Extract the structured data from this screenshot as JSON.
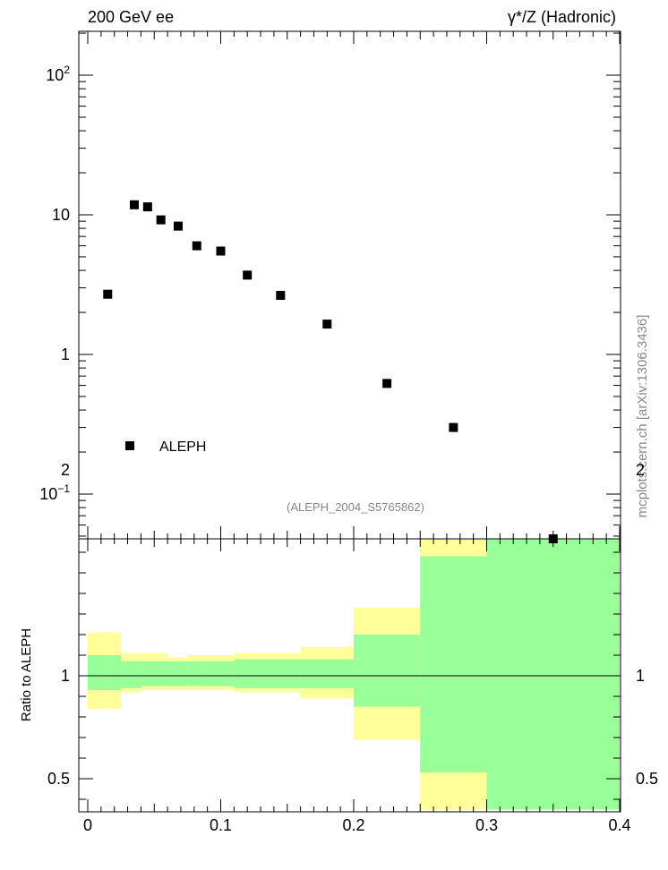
{
  "header": {
    "left": "200 GeV ee",
    "right": "γ*/Z (Hadronic)"
  },
  "side_label": "mcplots.cern.ch [arXiv:1306.3436]",
  "analysis_tag": "(ALEPH_2004_S5765862)",
  "legend": {
    "label": "ALEPH"
  },
  "colors": {
    "data": "#000000",
    "band_inner": "#99ff99",
    "band_outer": "#ffff99",
    "line": "#000000"
  },
  "chart_data": [
    {
      "type": "scatter",
      "name": "main",
      "log_y": true,
      "xlim": [
        0,
        0.4
      ],
      "ylim": [
        0.05,
        200
      ],
      "y_ticks": [
        {
          "v": 0.1,
          "base": "10",
          "exp": "−1"
        },
        {
          "v": 1,
          "base": "1",
          "exp": ""
        },
        {
          "v": 10,
          "base": "10",
          "exp": ""
        },
        {
          "v": 100,
          "base": "10",
          "exp": "2"
        }
      ],
      "series": [
        {
          "name": "ALEPH",
          "x": [
            0.015,
            0.035,
            0.045,
            0.055,
            0.068,
            0.082,
            0.1,
            0.12,
            0.145,
            0.18,
            0.225,
            0.275,
            0.35
          ],
          "y": [
            2.7,
            11.8,
            11.4,
            9.2,
            8.3,
            6.0,
            5.5,
            3.7,
            2.65,
            1.65,
            0.62,
            0.3,
            0.045
          ]
        }
      ]
    },
    {
      "type": "area",
      "name": "ratio",
      "ylabel": "Ratio to ALEPH",
      "xlim": [
        0,
        0.4
      ],
      "ylim": [
        0.35,
        2.35
      ],
      "x_ticks": [
        "0",
        "0.1",
        "0.2",
        "0.3",
        "0.4"
      ],
      "y_ticks": [
        "0.5",
        "1",
        "2"
      ],
      "reference_line": 1,
      "bins": [
        {
          "x0": 0.0,
          "x1": 0.025,
          "inner": [
            0.93,
            1.1
          ],
          "outer": [
            0.84,
            1.21
          ]
        },
        {
          "x0": 0.025,
          "x1": 0.04,
          "inner": [
            0.94,
            1.07
          ],
          "outer": [
            0.92,
            1.11
          ]
        },
        {
          "x0": 0.04,
          "x1": 0.06,
          "inner": [
            0.95,
            1.07
          ],
          "outer": [
            0.93,
            1.11
          ]
        },
        {
          "x0": 0.06,
          "x1": 0.075,
          "inner": [
            0.95,
            1.07
          ],
          "outer": [
            0.93,
            1.09
          ]
        },
        {
          "x0": 0.075,
          "x1": 0.09,
          "inner": [
            0.95,
            1.07
          ],
          "outer": [
            0.93,
            1.1
          ]
        },
        {
          "x0": 0.09,
          "x1": 0.11,
          "inner": [
            0.95,
            1.07
          ],
          "outer": [
            0.93,
            1.1
          ]
        },
        {
          "x0": 0.11,
          "x1": 0.16,
          "inner": [
            0.94,
            1.08
          ],
          "outer": [
            0.92,
            1.11
          ]
        },
        {
          "x0": 0.16,
          "x1": 0.2,
          "inner": [
            0.94,
            1.08
          ],
          "outer": [
            0.89,
            1.14
          ]
        },
        {
          "x0": 0.2,
          "x1": 0.25,
          "inner": [
            0.85,
            1.2
          ],
          "outer": [
            0.69,
            1.33
          ]
        },
        {
          "x0": 0.25,
          "x1": 0.3,
          "inner": [
            0.53,
            1.58
          ],
          "outer": [
            0.35,
            2.0
          ]
        },
        {
          "x0": 0.3,
          "x1": 0.4,
          "inner": [
            0.35,
            2.35
          ],
          "outer": [
            0.35,
            2.35
          ]
        }
      ]
    }
  ]
}
